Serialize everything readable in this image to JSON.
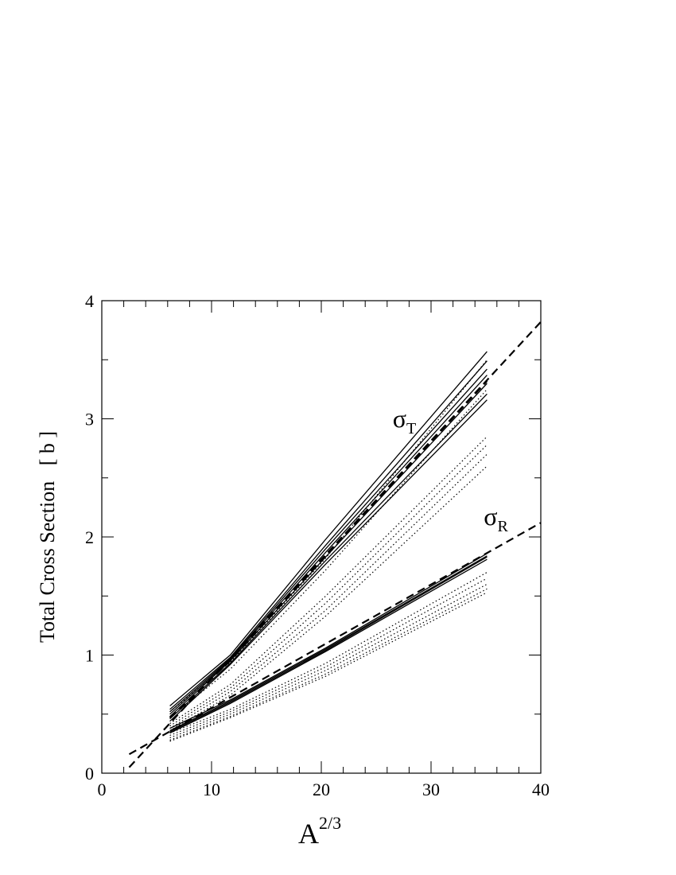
{
  "chart_data": {
    "type": "line",
    "title": "",
    "xlabel": "A",
    "xlabel_sup": "2/3",
    "ylabel": "Total Cross Section   [ b ]",
    "xlim": [
      0,
      40
    ],
    "ylim": [
      0,
      4
    ],
    "x_ticks": [
      "0",
      "10",
      "20",
      "30",
      "40"
    ],
    "y_ticks": [
      "0",
      "1",
      "2",
      "3",
      "4"
    ],
    "grid": false,
    "legend": "none",
    "annotations": [
      {
        "symbol": "σ",
        "sub": "T",
        "x": 26.5,
        "y": 2.93
      },
      {
        "symbol": "σ",
        "sub": "R",
        "x": 34.8,
        "y": 2.1
      }
    ],
    "x_points": [
      6.2,
      11.7,
      20.4,
      35.1
    ],
    "series": [
      {
        "group": "sigma_T",
        "style": "solid",
        "values": [
          0.57,
          1.0,
          1.98,
          3.57
        ]
      },
      {
        "group": "sigma_T",
        "style": "solid",
        "values": [
          0.54,
          0.98,
          1.93,
          3.49
        ]
      },
      {
        "group": "sigma_T",
        "style": "solid",
        "values": [
          0.52,
          0.97,
          1.9,
          3.42
        ]
      },
      {
        "group": "sigma_T",
        "style": "solid",
        "values": [
          0.5,
          0.96,
          1.87,
          3.37
        ]
      },
      {
        "group": "sigma_T",
        "style": "solid",
        "values": [
          0.48,
          0.95,
          1.83,
          3.3
        ]
      },
      {
        "group": "sigma_T",
        "style": "solid",
        "values": [
          0.46,
          0.93,
          1.8,
          3.21
        ]
      },
      {
        "group": "sigma_T",
        "style": "solid",
        "values": [
          0.44,
          0.92,
          1.77,
          3.16
        ]
      },
      {
        "group": "sigma_T",
        "style": "dotted",
        "values": [
          0.52,
          0.94,
          1.82,
          3.5
        ]
      },
      {
        "group": "sigma_T",
        "style": "dotted",
        "values": [
          0.47,
          0.88,
          1.72,
          3.25
        ]
      },
      {
        "group": "sigma_T",
        "style": "dotted",
        "values": [
          0.42,
          0.75,
          1.5,
          2.85
        ]
      },
      {
        "group": "sigma_T",
        "style": "dotted",
        "values": [
          0.4,
          0.72,
          1.44,
          2.78
        ]
      },
      {
        "group": "sigma_T",
        "style": "dotted",
        "values": [
          0.38,
          0.69,
          1.38,
          2.7
        ]
      },
      {
        "group": "sigma_T",
        "style": "dotted",
        "values": [
          0.36,
          0.66,
          1.33,
          2.6
        ]
      },
      {
        "group": "sigma_T",
        "style": "dashed",
        "values": [
          0.47,
          0.95,
          1.84,
          3.32
        ]
      },
      {
        "group": "sigma_R",
        "style": "solid",
        "values": [
          0.38,
          0.62,
          1.06,
          1.86
        ]
      },
      {
        "group": "sigma_R",
        "style": "solid",
        "values": [
          0.36,
          0.61,
          1.05,
          1.84
        ]
      },
      {
        "group": "sigma_R",
        "style": "solid",
        "values": [
          0.35,
          0.6,
          1.04,
          1.83
        ]
      },
      {
        "group": "sigma_R",
        "style": "solid",
        "values": [
          0.34,
          0.59,
          1.03,
          1.81
        ]
      },
      {
        "group": "sigma_R",
        "style": "dotted",
        "values": [
          0.34,
          0.54,
          0.93,
          1.7
        ]
      },
      {
        "group": "sigma_R",
        "style": "dotted",
        "values": [
          0.32,
          0.52,
          0.9,
          1.65
        ]
      },
      {
        "group": "sigma_R",
        "style": "dotted",
        "values": [
          0.3,
          0.5,
          0.87,
          1.6
        ]
      },
      {
        "group": "sigma_R",
        "style": "dotted",
        "values": [
          0.28,
          0.48,
          0.84,
          1.56
        ]
      },
      {
        "group": "sigma_R",
        "style": "dotted",
        "values": [
          0.27,
          0.47,
          0.82,
          1.53
        ]
      }
    ],
    "fit_lines": [
      {
        "group": "sigma_T",
        "style": "dashed",
        "x": [
          2.5,
          40
        ],
        "values": [
          0.05,
          3.82
        ]
      },
      {
        "group": "sigma_R",
        "style": "dashed",
        "x": [
          2.5,
          40
        ],
        "values": [
          0.16,
          2.12
        ]
      }
    ]
  }
}
